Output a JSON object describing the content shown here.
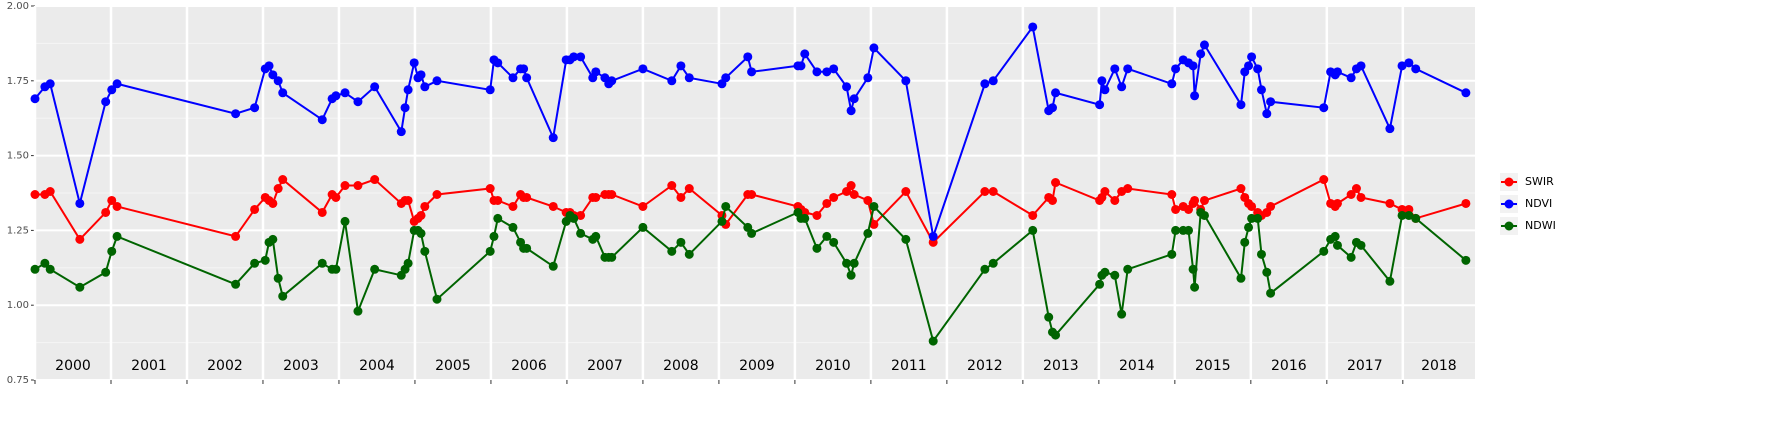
{
  "chart_data": {
    "type": "line",
    "x": [
      2000.0,
      2000.13,
      2000.2,
      2000.59,
      2000.93,
      2001.01,
      2001.08,
      2002.64,
      2002.89,
      2003.03,
      2003.08,
      2003.13,
      2003.2,
      2003.26,
      2003.78,
      2003.91,
      2003.96,
      2004.08,
      2004.25,
      2004.47,
      2004.82,
      2004.87,
      2004.91,
      2004.99,
      2005.04,
      2005.08,
      2005.13,
      2005.29,
      2005.99,
      2006.04,
      2006.09,
      2006.29,
      2006.39,
      2006.43,
      2006.47,
      2006.82,
      2006.99,
      2007.04,
      2007.09,
      2007.18,
      2007.34,
      2007.38,
      2007.5,
      2007.55,
      2007.59,
      2008.0,
      2008.38,
      2008.5,
      2008.61,
      2009.04,
      2009.09,
      2009.38,
      2009.43,
      2010.04,
      2010.08,
      2010.13,
      2010.29,
      2010.42,
      2010.51,
      2010.68,
      2010.74,
      2010.78,
      2010.96,
      2011.04,
      2011.46,
      2011.82,
      2012.5,
      2012.61,
      2013.13,
      2013.34,
      2013.39,
      2013.43,
      2014.01,
      2014.04,
      2014.08,
      2014.21,
      2014.3,
      2014.38,
      2014.96,
      2015.01,
      2015.11,
      2015.18,
      2015.24,
      2015.26,
      2015.34,
      2015.39,
      2015.87,
      2015.92,
      2015.97,
      2016.01,
      2016.09,
      2016.14,
      2016.21,
      2016.26,
      2016.96,
      2017.05,
      2017.11,
      2017.14,
      2017.32,
      2017.39,
      2017.45,
      2017.83,
      2017.99,
      2018.08,
      2018.17,
      2018.83
    ],
    "series": [
      {
        "name": "SWIR",
        "color": "#ff0000",
        "values": [
          1.37,
          1.37,
          1.38,
          1.22,
          1.31,
          1.35,
          1.33,
          1.23,
          1.32,
          1.36,
          1.35,
          1.34,
          1.39,
          1.42,
          1.31,
          1.37,
          1.36,
          1.4,
          1.4,
          1.42,
          1.34,
          1.35,
          1.35,
          1.28,
          1.29,
          1.3,
          1.33,
          1.37,
          1.39,
          1.35,
          1.35,
          1.33,
          1.37,
          1.36,
          1.36,
          1.33,
          1.31,
          1.31,
          1.3,
          1.3,
          1.36,
          1.36,
          1.37,
          1.37,
          1.37,
          1.33,
          1.4,
          1.36,
          1.39,
          1.3,
          1.27,
          1.37,
          1.37,
          1.33,
          1.32,
          1.31,
          1.3,
          1.34,
          1.36,
          1.38,
          1.4,
          1.37,
          1.35,
          1.27,
          1.38,
          1.21,
          1.38,
          1.38,
          1.3,
          1.36,
          1.35,
          1.41,
          1.35,
          1.36,
          1.38,
          1.35,
          1.38,
          1.39,
          1.37,
          1.32,
          1.33,
          1.32,
          1.34,
          1.35,
          1.32,
          1.35,
          1.39,
          1.36,
          1.34,
          1.33,
          1.31,
          1.3,
          1.31,
          1.33,
          1.42,
          1.34,
          1.33,
          1.34,
          1.37,
          1.39,
          1.36,
          1.34,
          1.32,
          1.32,
          1.29,
          1.34
        ]
      },
      {
        "name": "NDVI",
        "color": "#0000ff",
        "values": [
          1.69,
          1.73,
          1.74,
          1.34,
          1.68,
          1.72,
          1.74,
          1.64,
          1.66,
          1.79,
          1.8,
          1.77,
          1.75,
          1.71,
          1.62,
          1.69,
          1.7,
          1.71,
          1.68,
          1.73,
          1.58,
          1.66,
          1.72,
          1.81,
          1.76,
          1.77,
          1.73,
          1.75,
          1.72,
          1.82,
          1.81,
          1.76,
          1.79,
          1.79,
          1.76,
          1.56,
          1.82,
          1.82,
          1.83,
          1.83,
          1.76,
          1.78,
          1.76,
          1.74,
          1.75,
          1.79,
          1.75,
          1.8,
          1.76,
          1.74,
          1.76,
          1.83,
          1.78,
          1.8,
          1.8,
          1.84,
          1.78,
          1.78,
          1.79,
          1.73,
          1.65,
          1.69,
          1.76,
          1.86,
          1.75,
          1.23,
          1.74,
          1.75,
          1.93,
          1.65,
          1.66,
          1.71,
          1.67,
          1.75,
          1.72,
          1.79,
          1.73,
          1.79,
          1.74,
          1.79,
          1.82,
          1.81,
          1.8,
          1.7,
          1.84,
          1.87,
          1.67,
          1.78,
          1.8,
          1.83,
          1.79,
          1.72,
          1.64,
          1.68,
          1.66,
          1.78,
          1.77,
          1.78,
          1.76,
          1.79,
          1.8,
          1.59,
          1.8,
          1.81,
          1.79,
          1.71
        ]
      },
      {
        "name": "NDWI",
        "color": "#006400",
        "values": [
          1.12,
          1.14,
          1.12,
          1.06,
          1.11,
          1.18,
          1.23,
          1.07,
          1.14,
          1.15,
          1.21,
          1.22,
          1.09,
          1.03,
          1.14,
          1.12,
          1.12,
          1.28,
          0.98,
          1.12,
          1.1,
          1.12,
          1.14,
          1.25,
          1.25,
          1.24,
          1.18,
          1.02,
          1.18,
          1.23,
          1.29,
          1.26,
          1.21,
          1.19,
          1.19,
          1.13,
          1.28,
          1.3,
          1.29,
          1.24,
          1.22,
          1.23,
          1.16,
          1.16,
          1.16,
          1.26,
          1.18,
          1.21,
          1.17,
          1.28,
          1.33,
          1.26,
          1.24,
          1.31,
          1.29,
          1.29,
          1.19,
          1.23,
          1.21,
          1.14,
          1.1,
          1.14,
          1.24,
          1.33,
          1.22,
          0.88,
          1.12,
          1.14,
          1.25,
          0.96,
          0.91,
          0.9,
          1.07,
          1.1,
          1.11,
          1.1,
          0.97,
          1.12,
          1.17,
          1.25,
          1.25,
          1.25,
          1.12,
          1.06,
          1.31,
          1.3,
          1.09,
          1.21,
          1.26,
          1.29,
          1.29,
          1.17,
          1.11,
          1.04,
          1.18,
          1.22,
          1.23,
          1.2,
          1.16,
          1.21,
          1.2,
          1.08,
          1.3,
          1.3,
          1.29,
          1.15
        ]
      }
    ],
    "xlim": [
      2000,
      2018.95
    ],
    "xticks": [
      2000,
      2001,
      2002,
      2003,
      2004,
      2005,
      2006,
      2007,
      2008,
      2009,
      2010,
      2011,
      2012,
      2013,
      2014,
      2015,
      2016,
      2017,
      2018
    ],
    "year_labels": [
      "2000",
      "2001",
      "2002",
      "2003",
      "2004",
      "2005",
      "2006",
      "2007",
      "2008",
      "2009",
      "2010",
      "2011",
      "2012",
      "2013",
      "2014",
      "2015",
      "2016",
      "2017",
      "2018"
    ],
    "ylim": [
      0.75,
      2.0
    ],
    "yticks": [
      0.75,
      {
        "value": 1,
        "label": "1.00"
      },
      1.25,
      {
        "value": 1.5,
        "label": "1.50"
      },
      1.75,
      {
        "value": 2,
        "label": "2.00"
      }
    ],
    "grid": true,
    "legend": "right"
  }
}
